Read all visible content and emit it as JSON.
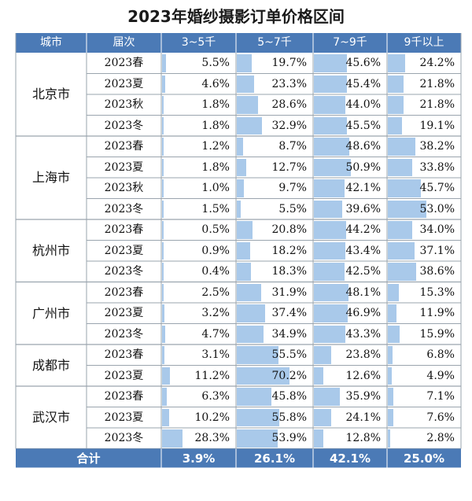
{
  "chart_data": {
    "type": "table",
    "title": "2023年婚纱摄影订单价格区间",
    "columns": [
      "城市",
      "届次",
      "3~5千",
      "5~7千",
      "7~9千",
      "9千以上"
    ],
    "groups": [
      {
        "city": "北京市",
        "rows": [
          {
            "period": "2023春",
            "values": [
              "5.5%",
              "19.7%",
              "45.6%",
              "24.2%"
            ]
          },
          {
            "period": "2023夏",
            "values": [
              "4.6%",
              "23.3%",
              "45.4%",
              "21.8%"
            ]
          },
          {
            "period": "2023秋",
            "values": [
              "1.8%",
              "28.6%",
              "44.0%",
              "21.8%"
            ]
          },
          {
            "period": "2023冬",
            "values": [
              "1.8%",
              "32.9%",
              "45.5%",
              "19.1%"
            ]
          }
        ]
      },
      {
        "city": "上海市",
        "rows": [
          {
            "period": "2023春",
            "values": [
              "1.2%",
              "8.7%",
              "48.6%",
              "38.2%"
            ]
          },
          {
            "period": "2023夏",
            "values": [
              "1.8%",
              "12.7%",
              "50.9%",
              "33.8%"
            ]
          },
          {
            "period": "2023秋",
            "values": [
              "1.0%",
              "9.7%",
              "42.1%",
              "45.7%"
            ]
          },
          {
            "period": "2023冬",
            "values": [
              "1.5%",
              "5.5%",
              "39.6%",
              "53.0%"
            ]
          }
        ]
      },
      {
        "city": "杭州市",
        "rows": [
          {
            "period": "2023春",
            "values": [
              "0.5%",
              "20.8%",
              "44.2%",
              "34.0%"
            ]
          },
          {
            "period": "2023夏",
            "values": [
              "0.9%",
              "18.2%",
              "43.4%",
              "37.1%"
            ]
          },
          {
            "period": "2023冬",
            "values": [
              "0.4%",
              "18.3%",
              "42.5%",
              "38.6%"
            ]
          }
        ]
      },
      {
        "city": "广州市",
        "rows": [
          {
            "period": "2023春",
            "values": [
              "2.5%",
              "31.9%",
              "48.1%",
              "15.3%"
            ]
          },
          {
            "period": "2023夏",
            "values": [
              "3.2%",
              "37.4%",
              "46.9%",
              "11.9%"
            ]
          },
          {
            "period": "2023冬",
            "values": [
              "4.7%",
              "34.9%",
              "43.3%",
              "15.9%"
            ]
          }
        ]
      },
      {
        "city": "成都市",
        "rows": [
          {
            "period": "2023春",
            "values": [
              "3.1%",
              "55.5%",
              "23.8%",
              "6.8%"
            ]
          },
          {
            "period": "2023夏",
            "values": [
              "11.2%",
              "70.2%",
              "12.6%",
              "4.9%"
            ]
          }
        ]
      },
      {
        "city": "武汉市",
        "rows": [
          {
            "period": "2023春",
            "values": [
              "6.3%",
              "45.8%",
              "35.9%",
              "7.1%"
            ]
          },
          {
            "period": "2023夏",
            "values": [
              "10.2%",
              "55.8%",
              "24.1%",
              "7.6%"
            ]
          },
          {
            "period": "2023冬",
            "values": [
              "28.3%",
              "53.9%",
              "12.8%",
              "2.8%"
            ]
          }
        ]
      }
    ],
    "total": {
      "label": "合计",
      "values": [
        "3.9%",
        "26.1%",
        "42.1%",
        "25.0%"
      ]
    },
    "colors": {
      "header": "#4b7ab6",
      "bar": "#a9c9ea",
      "grid": "#9aa4ae"
    }
  }
}
